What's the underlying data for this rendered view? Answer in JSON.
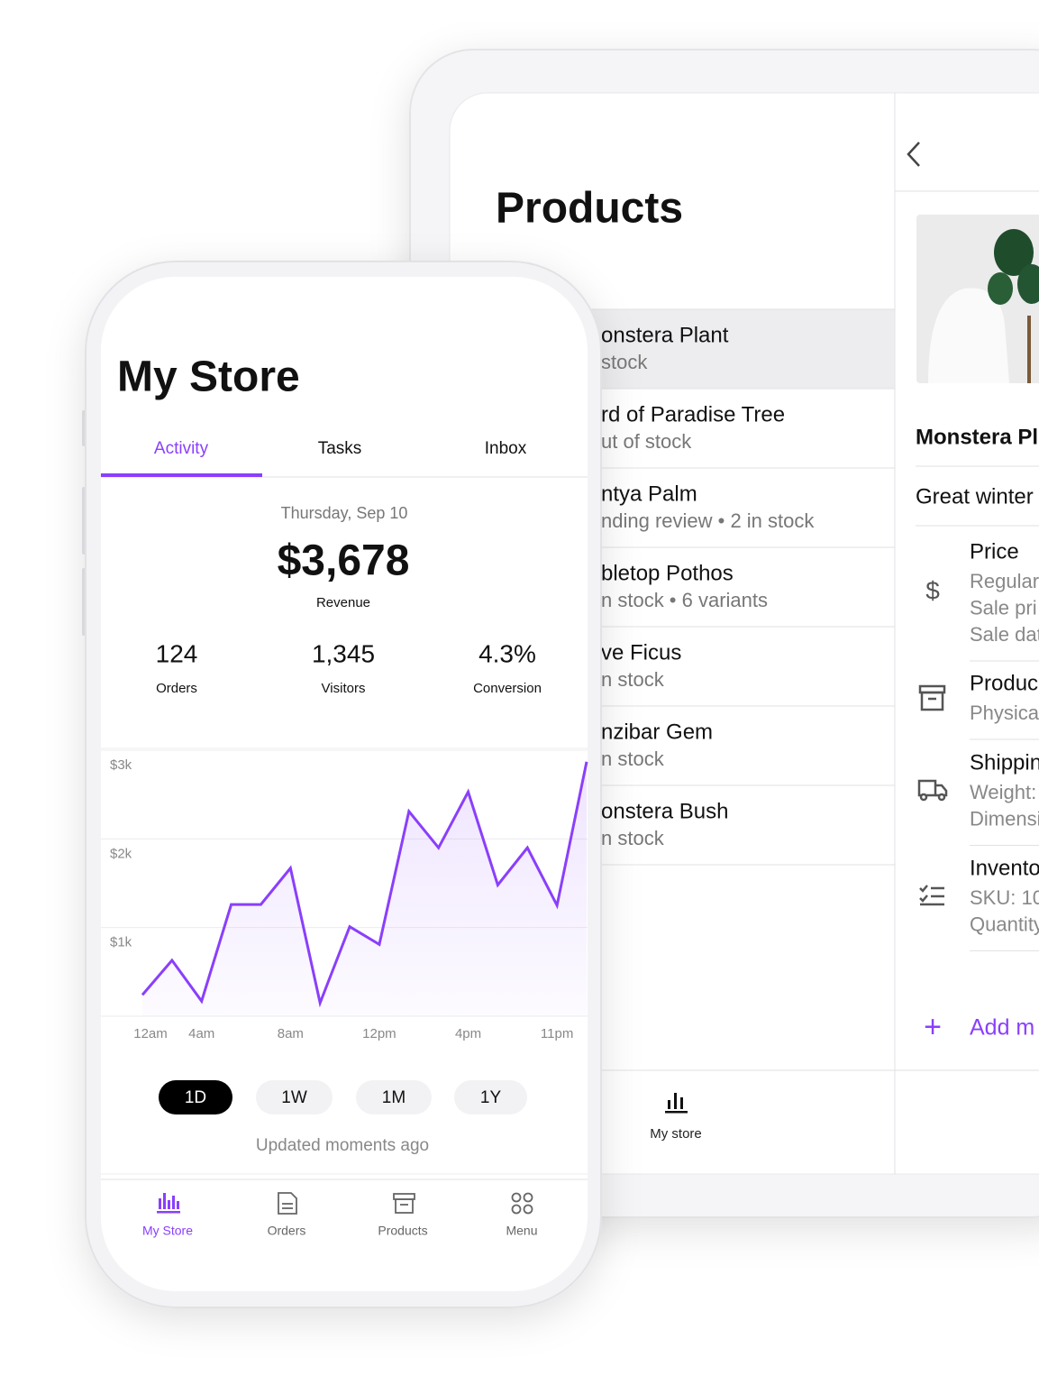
{
  "tablet": {
    "title": "Products",
    "products": [
      {
        "name": "onstera Plant",
        "status": "stock"
      },
      {
        "name": "rd of Paradise Tree",
        "status": "ut of stock"
      },
      {
        "name": "ntya Palm",
        "status": "nding review • 2 in stock"
      },
      {
        "name": "bletop Pothos",
        "status": "n stock • 6 variants"
      },
      {
        "name": "ve Ficus",
        "status": "n stock"
      },
      {
        "name": "nzibar Gem",
        "status": "n stock"
      },
      {
        "name": "onstera Bush",
        "status": "n stock"
      }
    ],
    "tab": "My store",
    "detail": {
      "name": "Monstera Pl",
      "description": "Great winter",
      "sections": [
        {
          "title": "Price",
          "lines": [
            "Regular",
            "Sale pri",
            "Sale dat"
          ]
        },
        {
          "title": "Produc",
          "lines": [
            "Physica"
          ]
        },
        {
          "title": "Shippin",
          "lines": [
            "Weight:",
            "Dimensi"
          ]
        },
        {
          "title": "Invento",
          "lines": [
            "SKU: 10",
            "Quantity"
          ]
        }
      ],
      "add": "Add m"
    }
  },
  "phone": {
    "title": "My Store",
    "tabs": [
      "Activity",
      "Tasks",
      "Inbox"
    ],
    "date": "Thursday, Sep 10",
    "revenue": "$3,678",
    "revenue_label": "Revenue",
    "stats": [
      {
        "value": "124",
        "label": "Orders"
      },
      {
        "value": "1,345",
        "label": "Visitors"
      },
      {
        "value": "4.3%",
        "label": "Conversion"
      }
    ],
    "ranges": [
      "1D",
      "1W",
      "1M",
      "1Y"
    ],
    "updated": "Updated moments ago",
    "nav": [
      "My Store",
      "Orders",
      "Products",
      "Menu"
    ]
  },
  "chart_data": {
    "type": "line",
    "categories": [
      "12am",
      null,
      "4am",
      null,
      null,
      "8am",
      null,
      null,
      "12pm",
      null,
      null,
      "4pm",
      null,
      null,
      "11pm",
      null
    ],
    "series": [
      {
        "color": "#8a3ffc",
        "values": [
          240,
          630,
          170,
          1260,
          1260,
          1670,
          150,
          1010,
          810,
          2310,
          1900,
          2530,
          1480,
          1900,
          1250,
          2870
        ]
      }
    ],
    "ylim": [
      0,
      3000
    ],
    "yticks": [
      {
        "value": 1000,
        "label": "$1k"
      },
      {
        "value": 2000,
        "label": "$2k"
      },
      {
        "value": 3000,
        "label": "$3k"
      }
    ],
    "grid": true
  }
}
